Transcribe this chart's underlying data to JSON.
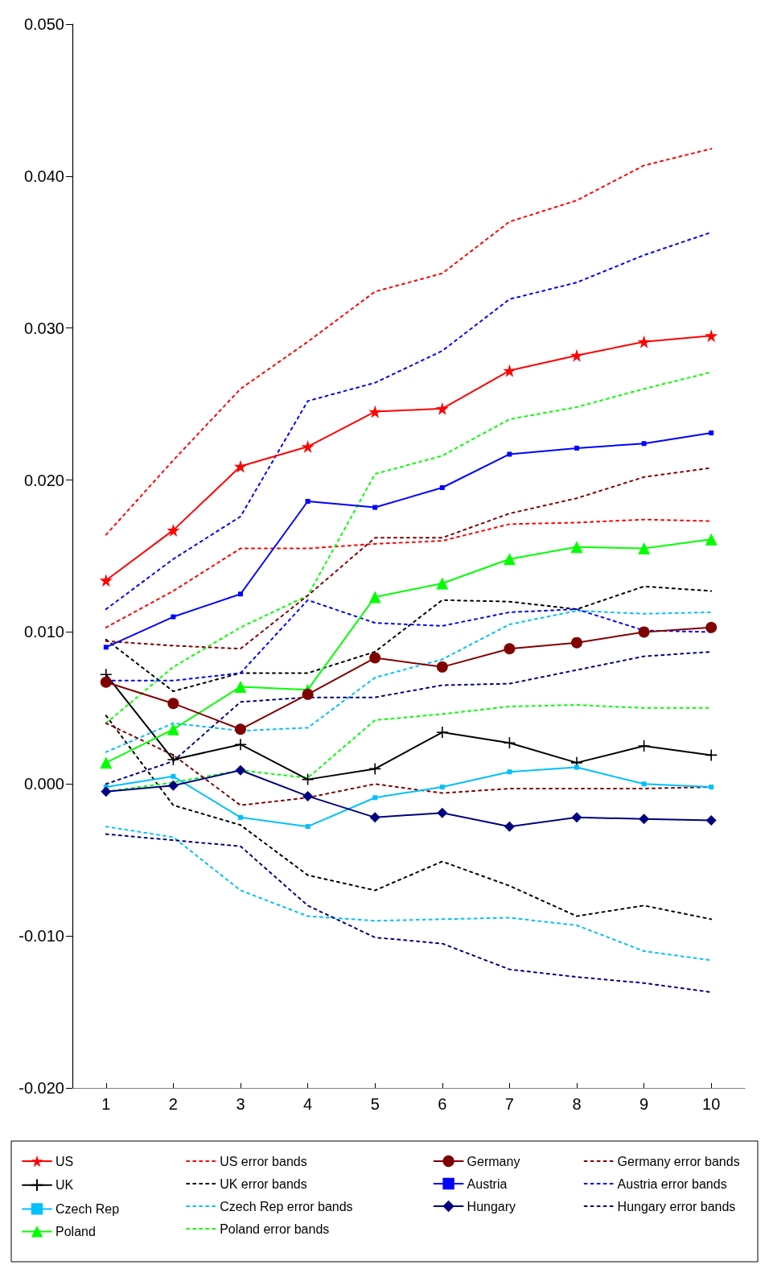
{
  "chart_data": {
    "type": "line",
    "x": [
      1,
      2,
      3,
      4,
      5,
      6,
      7,
      8,
      9,
      10
    ],
    "xlim": [
      0.5,
      10.5
    ],
    "xticks": [
      1,
      2,
      3,
      4,
      5,
      6,
      7,
      8,
      9,
      10
    ],
    "ylim": [
      -0.02,
      0.05
    ],
    "yticks": [
      {
        "value": -0.02,
        "label": "-0.020"
      },
      {
        "value": -0.01,
        "label": "-0.010"
      },
      {
        "value": 0,
        "label": "0.000"
      },
      {
        "value": 0.01,
        "label": "0.010"
      },
      {
        "value": 0.02,
        "label": "0.020"
      },
      {
        "value": 0.03,
        "label": "0.030"
      },
      {
        "value": 0.04,
        "label": "0.040"
      },
      {
        "value": 0.05,
        "label": "0.050"
      }
    ],
    "legend": "bottom",
    "series": [
      {
        "name": "US",
        "color": "#ff0000",
        "marker": "star",
        "line_style": "solid",
        "values": [
          0.0134,
          0.0167,
          0.0209,
          0.0222,
          0.0245,
          0.0247,
          0.0272,
          0.0282,
          0.0291,
          0.0295
        ]
      },
      {
        "name": "UK",
        "color": "#000000",
        "marker": "cross",
        "line_style": "solid",
        "values": [
          0.0072,
          0.0016,
          0.0026,
          0.0003,
          0.001,
          0.0034,
          0.0027,
          0.0014,
          0.0025,
          0.0019
        ]
      },
      {
        "name": "Czech Rep",
        "color": "#00bfff",
        "marker": "square",
        "line_style": "solid",
        "values": [
          -0.0002,
          0.0005,
          -0.0022,
          -0.0028,
          -0.0009,
          -0.0002,
          0.0008,
          0.0011,
          0.0,
          -0.0002
        ]
      },
      {
        "name": "Poland",
        "color": "#00ff00",
        "marker": "triangle",
        "line_style": "solid",
        "values": [
          0.0014,
          0.0036,
          0.0064,
          0.0062,
          0.0123,
          0.0132,
          0.0148,
          0.0156,
          0.0155,
          0.0161
        ]
      },
      {
        "name": "Germany",
        "color": "#800000",
        "marker": "circle",
        "line_style": "solid",
        "values": [
          0.0067,
          0.0053,
          0.0036,
          0.0059,
          0.0083,
          0.0077,
          0.0089,
          0.0093,
          0.01,
          0.0103
        ]
      },
      {
        "name": "Austria",
        "color": "#0000ff",
        "marker": "square",
        "line_style": "solid",
        "values": [
          0.009,
          0.011,
          0.0125,
          0.0186,
          0.0182,
          0.0195,
          0.0217,
          0.0221,
          0.0224,
          0.0231
        ]
      },
      {
        "name": "Hungary",
        "color": "#000080",
        "marker": "diamond",
        "line_style": "solid",
        "values": [
          -0.0005,
          -0.0001,
          0.0009,
          -0.0008,
          -0.0022,
          -0.0019,
          -0.0028,
          -0.0022,
          -0.0023,
          -0.0024
        ]
      },
      {
        "name": "US error bands",
        "color": "#ff0000",
        "marker": "none",
        "line_style": "dotted",
        "values": [
          0.0164,
          0.0213,
          0.026,
          0.0291,
          0.0324,
          0.0336,
          0.037,
          0.0384,
          0.0407,
          0.0418
        ]
      },
      {
        "color": "#ff0000",
        "marker": "none",
        "line_style": "dotted",
        "values": [
          0.0103,
          0.0127,
          0.0155,
          0.0155,
          0.0158,
          0.016,
          0.0171,
          0.0172,
          0.0174,
          0.0173
        ]
      },
      {
        "name": "UK error bands",
        "color": "#000000",
        "marker": "none",
        "line_style": "dotted",
        "values": [
          0.0095,
          0.0061,
          0.0073,
          0.0073,
          0.0087,
          0.0121,
          0.012,
          0.0115,
          0.013,
          0.0127
        ]
      },
      {
        "color": "#000000",
        "marker": "none",
        "line_style": "dotted",
        "values": [
          0.0045,
          -0.0014,
          -0.0027,
          -0.006,
          -0.007,
          -0.0051,
          -0.0067,
          -0.0087,
          -0.008,
          -0.0089
        ]
      },
      {
        "name": "Czech Rep error bands",
        "color": "#00bfff",
        "marker": "none",
        "line_style": "dotted",
        "values": [
          0.0021,
          0.004,
          0.0035,
          0.0037,
          0.007,
          0.0082,
          0.0105,
          0.0114,
          0.0112,
          0.0113
        ]
      },
      {
        "color": "#00bfff",
        "marker": "none",
        "line_style": "dotted",
        "values": [
          -0.0028,
          -0.0035,
          -0.007,
          -0.0087,
          -0.009,
          -0.0089,
          -0.0088,
          -0.0093,
          -0.011,
          -0.0116
        ]
      },
      {
        "name": "Poland error bands",
        "color": "#00ff00",
        "marker": "none",
        "line_style": "dotted",
        "values": [
          0.004,
          0.0077,
          0.0103,
          0.0124,
          0.0204,
          0.0216,
          0.024,
          0.0248,
          0.026,
          0.0271
        ]
      },
      {
        "color": "#00ff00",
        "marker": "none",
        "line_style": "dotted",
        "values": [
          -0.0005,
          0.0001,
          0.0009,
          0.0004,
          0.0042,
          0.0046,
          0.0051,
          0.0052,
          0.005,
          0.005
        ]
      },
      {
        "name": "Germany error bands",
        "color": "#800000",
        "marker": "none",
        "line_style": "dotted",
        "values": [
          0.0094,
          0.0091,
          0.0089,
          0.0124,
          0.0162,
          0.0162,
          0.0178,
          0.0188,
          0.0202,
          0.0208
        ]
      },
      {
        "color": "#800000",
        "marker": "none",
        "line_style": "dotted",
        "values": [
          0.004,
          0.0019,
          -0.0014,
          -0.0009,
          0.0,
          -0.0006,
          -0.0003,
          -0.0003,
          -0.0003,
          -0.0002
        ]
      },
      {
        "name": "Austria error bands",
        "color": "#0000ff",
        "marker": "none",
        "line_style": "dotted",
        "values": [
          0.0115,
          0.0148,
          0.0176,
          0.0252,
          0.0264,
          0.0285,
          0.0319,
          0.033,
          0.0348,
          0.0363
        ]
      },
      {
        "color": "#0000ff",
        "marker": "none",
        "line_style": "dotted",
        "values": [
          0.0068,
          0.0068,
          0.0073,
          0.0121,
          0.0106,
          0.0104,
          0.0113,
          0.0115,
          0.0101,
          0.01
        ]
      },
      {
        "name": "Hungary error bands",
        "color": "#000080",
        "marker": "none",
        "line_style": "dotted",
        "values": [
          0.0,
          0.0015,
          0.0054,
          0.0057,
          0.0057,
          0.0065,
          0.0066,
          0.0075,
          0.0084,
          0.0087
        ]
      },
      {
        "color": "#000080",
        "marker": "none",
        "line_style": "dotted",
        "values": [
          -0.0033,
          -0.0037,
          -0.0041,
          -0.008,
          -0.0101,
          -0.0105,
          -0.0122,
          -0.0127,
          -0.0131,
          -0.0137
        ]
      }
    ]
  }
}
